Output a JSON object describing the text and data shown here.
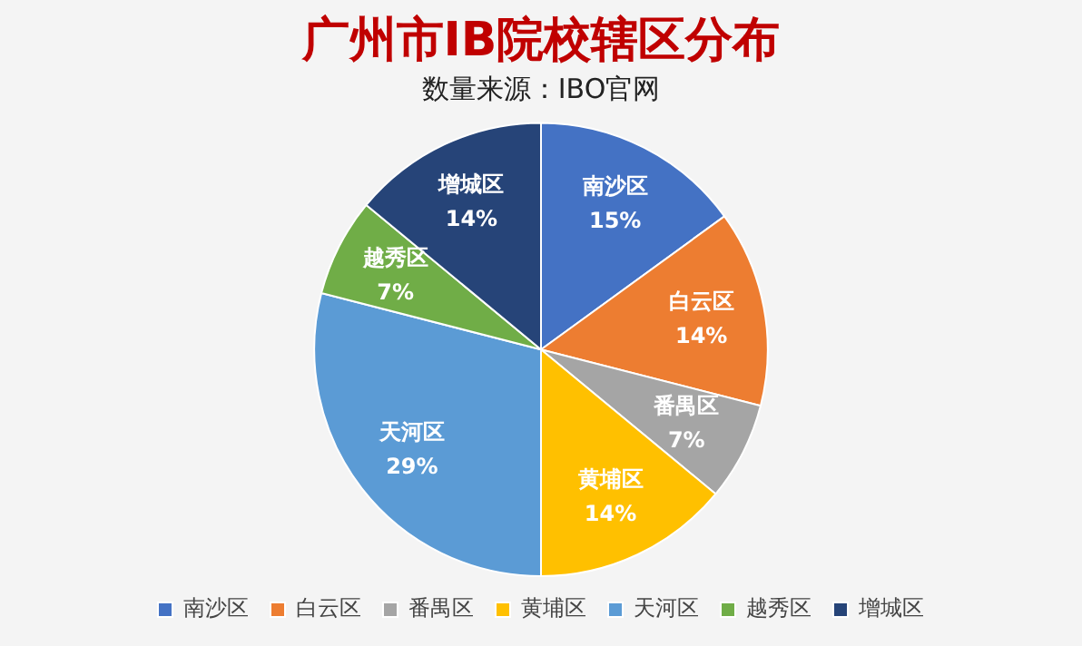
{
  "chart_data": {
    "type": "pie",
    "title": "广州市IB院校辖区分布",
    "subtitle": "数量来源：IBO官网",
    "categories": [
      "南沙区",
      "白云区",
      "番禺区",
      "黄埔区",
      "天河区",
      "越秀区",
      "增城区"
    ],
    "values": [
      15,
      14,
      7,
      14,
      29,
      7,
      14
    ],
    "value_labels": [
      "15%",
      "14%",
      "7%",
      "14%",
      "29%",
      "7%",
      "14%"
    ],
    "colors": [
      "#4472c4",
      "#ed7d31",
      "#a5a5a5",
      "#ffc000",
      "#5b9bd5",
      "#70ad47",
      "#264478"
    ],
    "legend": "bottom"
  }
}
